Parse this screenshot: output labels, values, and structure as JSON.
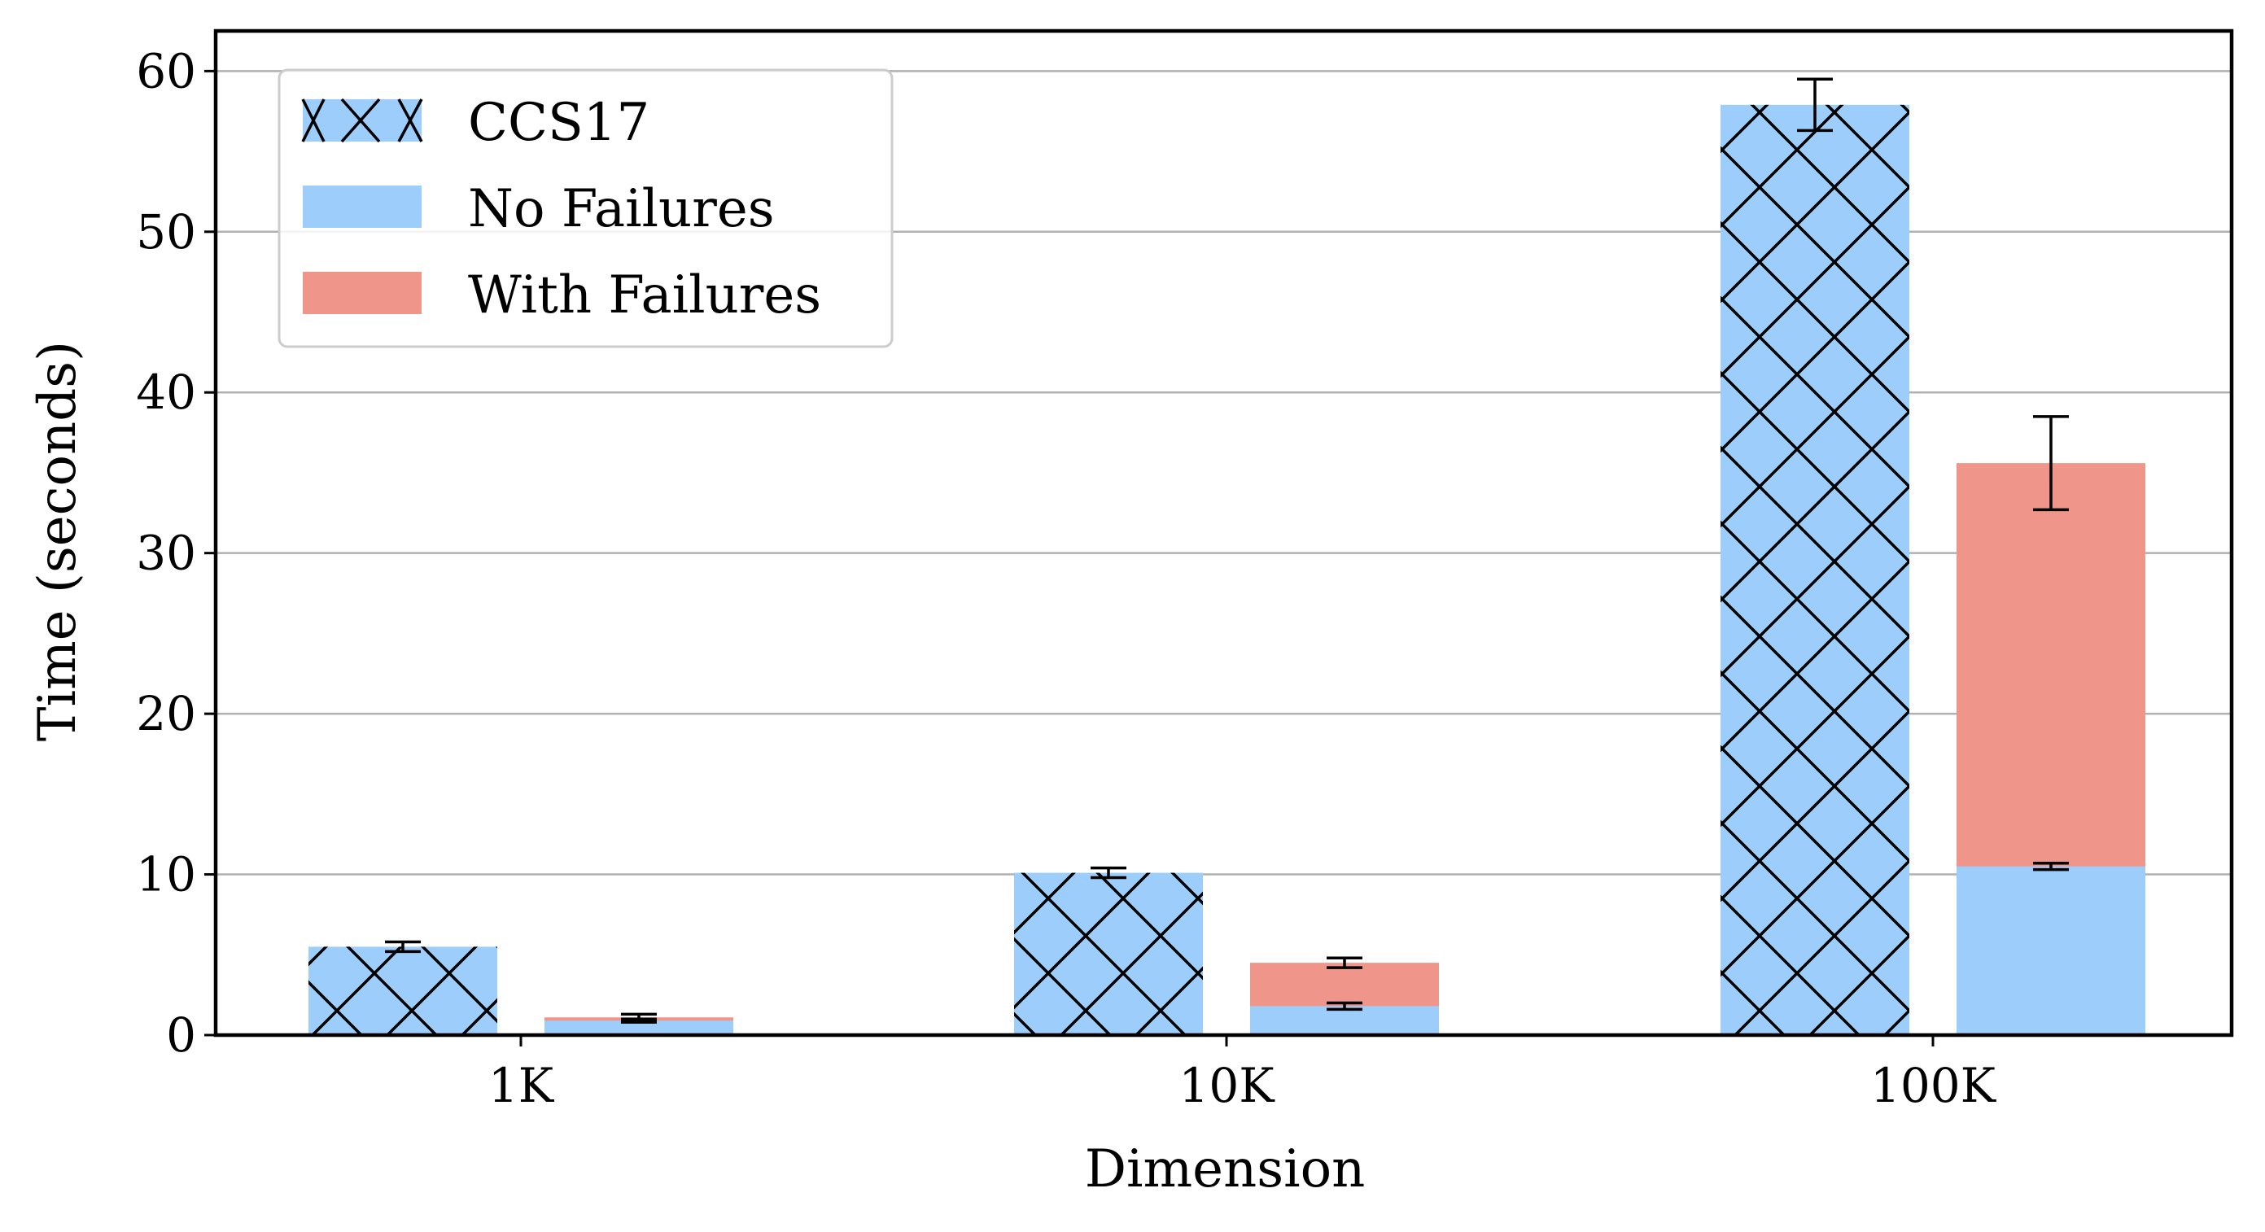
{
  "chart_data": {
    "type": "bar",
    "categories": [
      "1K",
      "10K",
      "100K"
    ],
    "xlabel": "Dimension",
    "ylabel": "Time (seconds)",
    "ylim": [
      0,
      62.5
    ],
    "yticks": [
      0,
      10,
      20,
      30,
      40,
      50,
      60
    ],
    "grid": "horizontal",
    "legend": {
      "placement": "top-left",
      "entries": [
        {
          "label": "CCS17",
          "color": "#9ccdfb",
          "hatch": "x"
        },
        {
          "label": "No Failures",
          "color": "#9ccdfb",
          "hatch": "none"
        },
        {
          "label": "With Failures",
          "color": "#f0958a",
          "hatch": "none"
        }
      ]
    },
    "series": [
      {
        "name": "CCS17",
        "values": [
          5.5,
          10.1,
          57.9
        ],
        "errors": [
          0.3,
          0.3,
          1.6
        ],
        "color": "#9ccdfb",
        "hatch": "x"
      },
      {
        "name": "No Failures",
        "values": [
          0.9,
          1.8,
          10.5
        ],
        "errors": [
          0.1,
          0.2,
          0.2
        ],
        "color": "#9ccdfb",
        "hatch": "none"
      },
      {
        "name": "With Failures",
        "values": [
          1.1,
          4.5,
          35.6
        ],
        "errors": [
          0.2,
          0.3,
          2.9
        ],
        "color": "#f0958a",
        "hatch": "none"
      }
    ]
  }
}
